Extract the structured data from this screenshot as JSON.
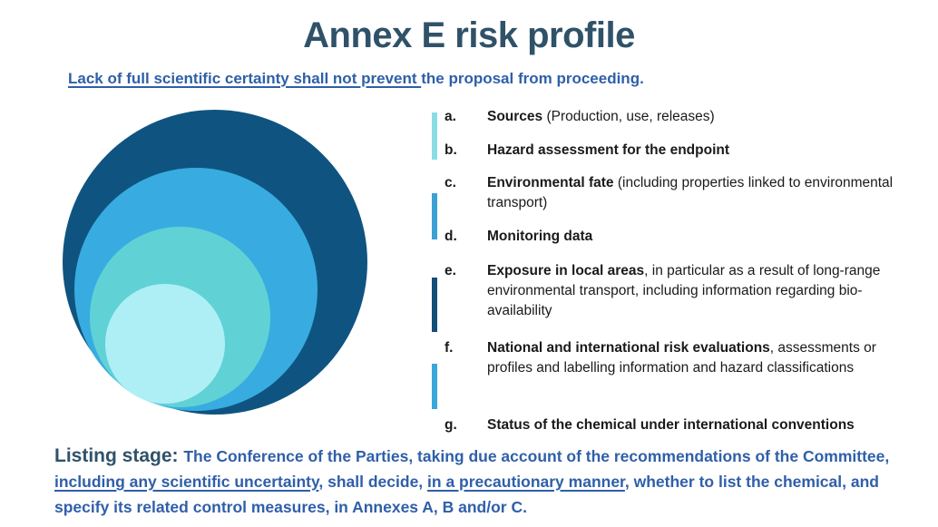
{
  "header": {
    "title": "Annex E risk profile",
    "title_color": "#2F5269"
  },
  "subtitle": {
    "underlined": "Lack of full scientific certainty shall not prevent ",
    "rest": "the proposal from proceeding.",
    "color": "#2F5FA9"
  },
  "diagram": {
    "description": "four nested concentric circles, tangent toward bottom-left",
    "circles": [
      {
        "name": "outer-circle",
        "color": "#0F5480"
      },
      {
        "name": "second-circle",
        "color": "#38ACE0"
      },
      {
        "name": "third-circle",
        "color": "#60D2D6"
      },
      {
        "name": "inner-circle",
        "color": "#AEEFF5"
      }
    ]
  },
  "list": {
    "bars": [
      {
        "name": "bar-light-cyan",
        "color": "#8BDDE5"
      },
      {
        "name": "bar-blue-1",
        "color": "#3BA0D4"
      },
      {
        "name": "bar-dark-navy",
        "color": "#134E77"
      },
      {
        "name": "bar-blue-2",
        "color": "#3BA6DA"
      }
    ],
    "items": [
      {
        "letter": "a.",
        "bold": "Sources",
        "rest": " (Production, use, releases)"
      },
      {
        "letter": "b.",
        "bold": "Hazard assessment for the endpoint",
        "rest": ""
      },
      {
        "letter": "c.",
        "bold": "Environmental fate",
        "rest": " (including properties linked to environmental transport)"
      },
      {
        "letter": "d.",
        "bold": "Monitoring data",
        "rest": ""
      },
      {
        "letter": "e.",
        "bold": "Exposure in local areas",
        "rest": ", in particular as a result of long-range environmental transport, including information regarding bio-availability"
      },
      {
        "letter": "f.",
        "bold": "National and international risk evaluations",
        "rest": ", assessments or profiles and labelling information and hazard classifications"
      },
      {
        "letter": "g.",
        "bold": "Status of the chemical under international conventions",
        "rest": ""
      }
    ],
    "text_color": "#1A1A1A"
  },
  "footer": {
    "label": "Listing stage: ",
    "label_color": "#2F5269",
    "body_color": "#2F5FA9",
    "segments": [
      {
        "text": "The Conference of the Parties, taking due account of the recommendations of the Committee, ",
        "underline": false
      },
      {
        "text": "including any scientific uncertainty",
        "underline": true
      },
      {
        "text": ", shall decide, ",
        "underline": false
      },
      {
        "text": "in a precautionary manner",
        "underline": true
      },
      {
        "text": ", whether to list the chemical, and specify its related control measures, in Annexes A, B and/or C.",
        "underline": false
      }
    ]
  }
}
